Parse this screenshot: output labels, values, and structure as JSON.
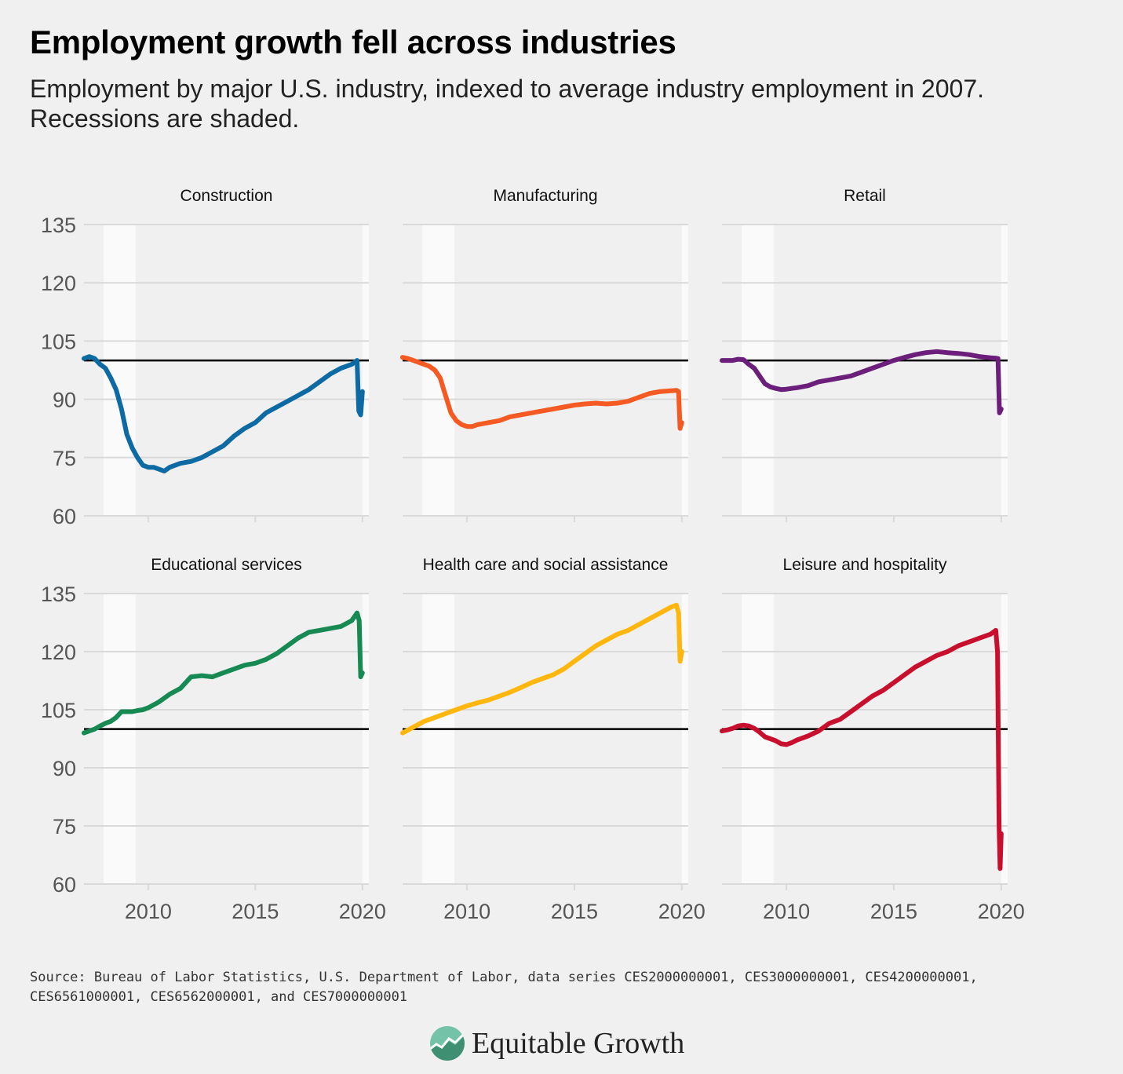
{
  "title": "Employment growth fell across industries",
  "subtitle": "Employment by major U.S. industry, indexed to average industry employment in 2007. Recessions are shaded.",
  "source": "Source: Bureau of Labor Statistics, U.S. Department of Labor, data series CES2000000001, CES3000000001, CES4200000001, CES6561000001, CES6562000001, and CES7000000001",
  "logo": {
    "text": "Equitable Growth",
    "icon": "growth-chart-logo-icon"
  },
  "colors": {
    "background": "#f0f0f0",
    "recession": "#fafafa",
    "grid": "#d9d9d9",
    "reference": "#000000"
  },
  "chart_data": {
    "type": "line",
    "layout": "small-multiples",
    "xlim": [
      2007,
      2020.3
    ],
    "ylim": [
      60,
      135
    ],
    "yticks": [
      "135",
      "120",
      "105",
      "90",
      "75",
      "60"
    ],
    "xticks": [
      "2010",
      "2015",
      "2020"
    ],
    "reference_line": 100,
    "recessions": [
      [
        2007.92,
        2009.42
      ],
      [
        2020.0,
        2020.3
      ]
    ],
    "panels": [
      {
        "name": "Construction",
        "color": "#0d6aa3",
        "x": [
          2007.0,
          2007.25,
          2007.5,
          2007.75,
          2008.0,
          2008.25,
          2008.5,
          2008.75,
          2009.0,
          2009.25,
          2009.5,
          2009.75,
          2010.0,
          2010.25,
          2010.5,
          2010.75,
          2011.0,
          2011.5,
          2012.0,
          2012.5,
          2013.0,
          2013.5,
          2014.0,
          2014.5,
          2015.0,
          2015.5,
          2016.0,
          2016.5,
          2017.0,
          2017.5,
          2018.0,
          2018.5,
          2019.0,
          2019.5,
          2019.75,
          2019.83,
          2019.92,
          2020.0
        ],
        "y": [
          100.5,
          101,
          100.5,
          99,
          98,
          95.5,
          92.5,
          87.5,
          81,
          77.5,
          75,
          73,
          72.5,
          72.5,
          72,
          71.5,
          72.5,
          73.5,
          74,
          75,
          76.5,
          78,
          80.5,
          82.5,
          84,
          86.5,
          88,
          89.5,
          91,
          92.5,
          94.5,
          96.5,
          98,
          99,
          100,
          87,
          86,
          92
        ]
      },
      {
        "name": "Manufacturing",
        "color": "#f45a22",
        "x": [
          2007.0,
          2007.25,
          2007.5,
          2007.75,
          2008.0,
          2008.25,
          2008.5,
          2008.75,
          2009.0,
          2009.25,
          2009.5,
          2009.75,
          2010.0,
          2010.25,
          2010.5,
          2011.0,
          2011.5,
          2012.0,
          2012.5,
          2013.0,
          2013.5,
          2014.0,
          2014.5,
          2015.0,
          2015.5,
          2016.0,
          2016.5,
          2017.0,
          2017.5,
          2018.0,
          2018.5,
          2019.0,
          2019.5,
          2019.75,
          2019.85,
          2019.92,
          2020.0
        ],
        "y": [
          100.8,
          100.5,
          100,
          99.5,
          99,
          98.5,
          97.5,
          95.5,
          91,
          86.5,
          84.5,
          83.5,
          83,
          83,
          83.5,
          84,
          84.5,
          85.5,
          86,
          86.5,
          87,
          87.5,
          88,
          88.5,
          88.8,
          89,
          88.8,
          89,
          89.5,
          90.5,
          91.5,
          92,
          92.2,
          92.3,
          92,
          82.5,
          84
        ]
      },
      {
        "name": "Retail",
        "color": "#6b1f7b",
        "x": [
          2007.0,
          2007.25,
          2007.5,
          2007.75,
          2008.0,
          2008.25,
          2008.5,
          2008.75,
          2009.0,
          2009.25,
          2009.5,
          2009.75,
          2010.0,
          2010.25,
          2010.5,
          2011.0,
          2011.5,
          2012.0,
          2012.5,
          2013.0,
          2013.5,
          2014.0,
          2014.5,
          2015.0,
          2015.5,
          2016.0,
          2016.5,
          2017.0,
          2017.5,
          2018.0,
          2018.5,
          2019.0,
          2019.5,
          2019.75,
          2019.85,
          2019.92,
          2020.0
        ],
        "y": [
          100,
          100,
          100,
          100.3,
          100.2,
          99,
          98,
          96,
          94,
          93.2,
          92.8,
          92.5,
          92.6,
          92.8,
          93,
          93.5,
          94.5,
          95,
          95.5,
          96,
          97,
          98,
          99,
          100,
          100.8,
          101.5,
          102,
          102.3,
          102,
          101.8,
          101.5,
          101,
          100.7,
          100.6,
          100.5,
          86.5,
          87.5
        ]
      },
      {
        "name": "Educational services",
        "color": "#178a54",
        "x": [
          2007.0,
          2007.25,
          2007.5,
          2007.75,
          2008.0,
          2008.25,
          2008.5,
          2008.75,
          2009.0,
          2009.25,
          2009.5,
          2009.75,
          2010.0,
          2010.5,
          2011.0,
          2011.5,
          2012.0,
          2012.5,
          2013.0,
          2013.5,
          2014.0,
          2014.5,
          2015.0,
          2015.5,
          2016.0,
          2016.5,
          2017.0,
          2017.5,
          2018.0,
          2018.5,
          2019.0,
          2019.5,
          2019.75,
          2019.85,
          2019.92,
          2020.0
        ],
        "y": [
          99,
          99.5,
          100,
          100.8,
          101.5,
          102,
          103,
          104.5,
          104.5,
          104.5,
          104.8,
          105,
          105.5,
          107,
          109,
          110.5,
          113.5,
          113.8,
          113.5,
          114.5,
          115.5,
          116.5,
          117,
          118,
          119.5,
          121.5,
          123.5,
          125,
          125.5,
          126,
          126.5,
          128,
          130,
          128,
          113.5,
          114.5
        ]
      },
      {
        "name": "Health care and social assistance",
        "color": "#ffb60d",
        "x": [
          2007.0,
          2007.5,
          2008.0,
          2008.5,
          2009.0,
          2009.5,
          2010.0,
          2010.5,
          2011.0,
          2011.5,
          2012.0,
          2012.5,
          2013.0,
          2013.5,
          2014.0,
          2014.5,
          2015.0,
          2015.5,
          2016.0,
          2016.5,
          2017.0,
          2017.5,
          2018.0,
          2018.5,
          2019.0,
          2019.5,
          2019.75,
          2019.85,
          2019.92,
          2020.0
        ],
        "y": [
          99,
          100.5,
          102,
          103,
          104,
          105,
          106,
          106.8,
          107.5,
          108.5,
          109.5,
          110.7,
          112,
          113,
          114,
          115.5,
          117.5,
          119.5,
          121.5,
          123,
          124.5,
          125.5,
          127,
          128.5,
          130,
          131.5,
          132,
          130,
          117.5,
          120
        ]
      },
      {
        "name": "Leisure and hospitality",
        "color": "#c8102e",
        "x": [
          2007.0,
          2007.25,
          2007.5,
          2007.75,
          2008.0,
          2008.25,
          2008.5,
          2008.75,
          2009.0,
          2009.25,
          2009.5,
          2009.75,
          2010.0,
          2010.25,
          2010.5,
          2011.0,
          2011.5,
          2012.0,
          2012.5,
          2013.0,
          2013.5,
          2014.0,
          2014.5,
          2015.0,
          2015.5,
          2016.0,
          2016.5,
          2017.0,
          2017.5,
          2018.0,
          2018.5,
          2019.0,
          2019.5,
          2019.75,
          2019.83,
          2019.9,
          2019.95,
          2020.0
        ],
        "y": [
          99.5,
          99.8,
          100.2,
          100.8,
          101,
          100.8,
          100.2,
          99.2,
          98,
          97.5,
          97,
          96.2,
          96,
          96.5,
          97.2,
          98.2,
          99.5,
          101.5,
          102.5,
          104.5,
          106.5,
          108.5,
          110,
          112,
          114,
          116,
          117.5,
          119,
          120,
          121.5,
          122.5,
          123.5,
          124.5,
          125.5,
          120,
          75,
          64,
          73
        ]
      }
    ]
  }
}
